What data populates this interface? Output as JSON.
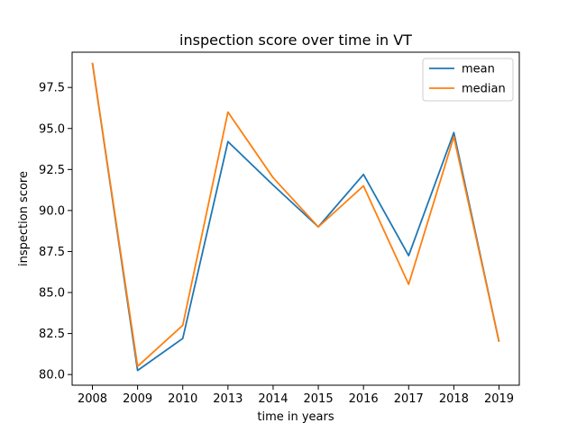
{
  "chart_data": {
    "type": "line",
    "title": "inspection score over time in VT",
    "xlabel": "time in years",
    "ylabel": "inspection score",
    "categories": [
      "2008",
      "2009",
      "2010",
      "2013",
      "2014",
      "2015",
      "2016",
      "2017",
      "2018",
      "2019"
    ],
    "yticks": [
      "80.0",
      "82.5",
      "85.0",
      "87.5",
      "90.0",
      "92.5",
      "95.0",
      "97.5"
    ],
    "ylim": [
      79.35,
      99.65
    ],
    "grid": false,
    "legend_position": "top-right",
    "series": [
      {
        "name": "mean",
        "color": "#1f77b4",
        "values": [
          99.0,
          80.25,
          82.2,
          94.2,
          91.55,
          89.0,
          92.2,
          87.25,
          94.75,
          82.0
        ]
      },
      {
        "name": "median",
        "color": "#ff7f0e",
        "values": [
          99.0,
          80.5,
          83.0,
          96.0,
          92.0,
          89.0,
          91.5,
          85.5,
          94.5,
          82.0
        ]
      }
    ]
  }
}
